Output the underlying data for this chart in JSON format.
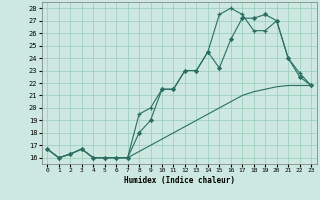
{
  "xlabel": "Humidex (Indice chaleur)",
  "bg_color": "#cce8e0",
  "grid_color": "#99ccbb",
  "line_color": "#2a6e62",
  "xlim": [
    -0.5,
    23.5
  ],
  "ylim": [
    15.5,
    28.5
  ],
  "xticks": [
    0,
    1,
    2,
    3,
    4,
    5,
    6,
    7,
    8,
    9,
    10,
    11,
    12,
    13,
    14,
    15,
    16,
    17,
    18,
    19,
    20,
    21,
    22,
    23
  ],
  "yticks": [
    16,
    17,
    18,
    19,
    20,
    21,
    22,
    23,
    24,
    25,
    26,
    27,
    28
  ],
  "line1_x": [
    0,
    1,
    2,
    3,
    4,
    5,
    6,
    7,
    8,
    9,
    10,
    11,
    12,
    13,
    14,
    15,
    16,
    17,
    18,
    19,
    20,
    21,
    22,
    23
  ],
  "line1_y": [
    16.7,
    16.0,
    16.3,
    16.7,
    16.0,
    16.0,
    16.0,
    16.0,
    19.5,
    20.0,
    21.5,
    21.5,
    23.0,
    23.0,
    24.5,
    27.5,
    28.0,
    27.5,
    26.2,
    26.2,
    27.0,
    24.0,
    22.8,
    21.8
  ],
  "line2_x": [
    0,
    1,
    2,
    3,
    4,
    5,
    6,
    7,
    8,
    9,
    10,
    11,
    12,
    13,
    14,
    15,
    16,
    17,
    18,
    19,
    20,
    21,
    22,
    23
  ],
  "line2_y": [
    16.7,
    16.0,
    16.3,
    16.7,
    16.0,
    16.0,
    16.0,
    16.0,
    18.0,
    19.0,
    21.5,
    21.5,
    23.0,
    23.0,
    24.5,
    23.2,
    25.5,
    27.2,
    27.2,
    27.5,
    27.0,
    24.0,
    22.5,
    21.8
  ],
  "line3_x": [
    0,
    1,
    2,
    3,
    4,
    5,
    6,
    7,
    8,
    9,
    10,
    11,
    12,
    13,
    14,
    15,
    16,
    17,
    18,
    19,
    20,
    21,
    22,
    23
  ],
  "line3_y": [
    16.7,
    16.0,
    16.3,
    16.7,
    16.0,
    16.0,
    16.0,
    16.0,
    16.5,
    17.0,
    17.5,
    18.0,
    18.5,
    19.0,
    19.5,
    20.0,
    20.5,
    21.0,
    21.3,
    21.5,
    21.7,
    21.8,
    21.8,
    21.8
  ]
}
